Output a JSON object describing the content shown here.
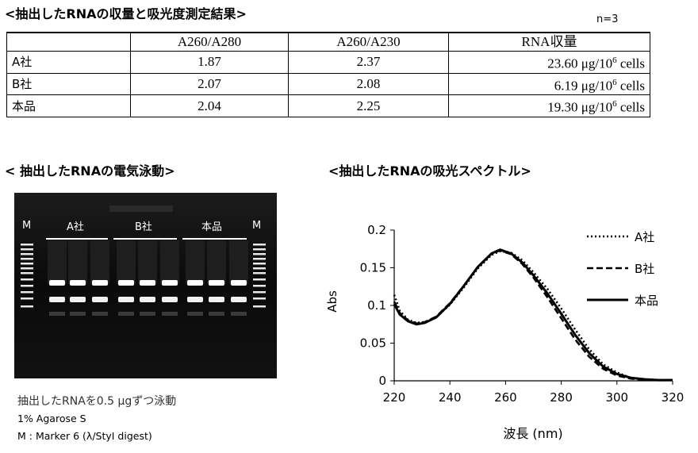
{
  "sections": {
    "table_title": "<抽出したRNAの収量と吸光度測定結果>",
    "gel_title": "< 抽出したRNAの電気泳動>",
    "spectrum_title": "<抽出したRNAの吸光スペクトル>"
  },
  "table": {
    "n_label": "n=3",
    "headers": [
      "",
      "A260/A280",
      "A260/A230",
      "RNA収量"
    ],
    "rows": [
      {
        "label": "A社",
        "a260_280": "1.87",
        "a260_230": "2.37",
        "yield": "23.60 μg/10",
        "exp": "6",
        "unit": " cells"
      },
      {
        "label": "B社",
        "a260_280": "2.07",
        "a260_230": "2.08",
        "yield": "6.19 μg/10",
        "exp": "6",
        "unit": " cells"
      },
      {
        "label": "本品",
        "a260_280": "2.04",
        "a260_230": "2.25",
        "yield": "19.30 μg/10",
        "exp": "6",
        "unit": " cells"
      }
    ]
  },
  "gel": {
    "marker_label": "M",
    "groups": [
      "A社",
      "B社",
      "本品"
    ],
    "notes": [
      "抽出したRNAを0.5 μgずつ泳動",
      "1% Agarose S",
      "M : Marker 6 (λ/StyI digest)"
    ]
  },
  "chart_data": {
    "type": "line",
    "xlabel": "波長 (nm)",
    "ylabel": "Abs",
    "xlim": [
      220,
      320
    ],
    "ylim": [
      0,
      0.2
    ],
    "xticks": [
      220,
      240,
      260,
      280,
      300,
      320
    ],
    "yticks": [
      "0",
      "0.05",
      "0.1",
      "0.15",
      "0.2"
    ],
    "legend_position": "top-right",
    "series": [
      {
        "name": "A社",
        "style": "dotted",
        "x": [
          220,
          222,
          225,
          228,
          231,
          235,
          240,
          245,
          250,
          255,
          258,
          262,
          266,
          270,
          275,
          280,
          285,
          290,
          295,
          300,
          305,
          310,
          315,
          320
        ],
        "y": [
          0.114,
          0.093,
          0.081,
          0.077,
          0.078,
          0.084,
          0.101,
          0.124,
          0.149,
          0.167,
          0.172,
          0.17,
          0.16,
          0.144,
          0.122,
          0.096,
          0.068,
          0.042,
          0.022,
          0.011,
          0.004,
          0.002,
          0.001,
          0.001
        ]
      },
      {
        "name": "B社",
        "style": "dashed",
        "x": [
          220,
          222,
          225,
          228,
          231,
          235,
          240,
          245,
          250,
          255,
          258,
          262,
          266,
          270,
          275,
          280,
          285,
          290,
          295,
          300,
          305,
          310,
          315,
          320
        ],
        "y": [
          0.105,
          0.09,
          0.08,
          0.076,
          0.078,
          0.085,
          0.103,
          0.126,
          0.151,
          0.169,
          0.173,
          0.168,
          0.155,
          0.137,
          0.111,
          0.083,
          0.055,
          0.032,
          0.016,
          0.007,
          0.003,
          0.001,
          0.001,
          0.001
        ]
      },
      {
        "name": "本品",
        "style": "solid",
        "x": [
          220,
          222,
          225,
          228,
          231,
          235,
          240,
          245,
          250,
          255,
          258,
          262,
          266,
          270,
          275,
          280,
          285,
          290,
          295,
          300,
          305,
          310,
          315,
          320
        ],
        "y": [
          0.102,
          0.088,
          0.079,
          0.075,
          0.077,
          0.084,
          0.102,
          0.126,
          0.151,
          0.169,
          0.174,
          0.169,
          0.157,
          0.14,
          0.116,
          0.089,
          0.061,
          0.037,
          0.019,
          0.009,
          0.004,
          0.002,
          0.001,
          0.001
        ]
      }
    ]
  }
}
